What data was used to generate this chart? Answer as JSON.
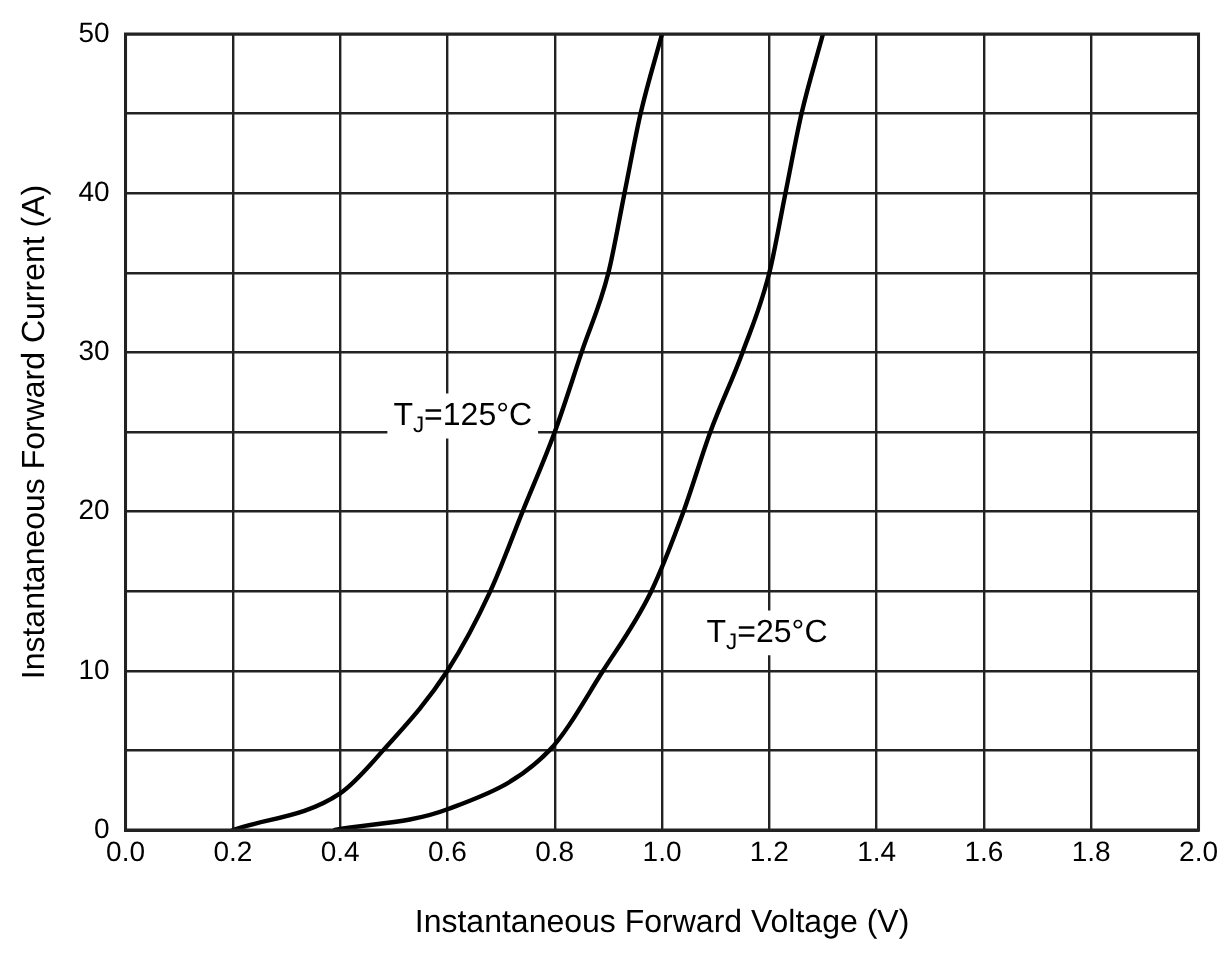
{
  "chart_data": {
    "type": "line",
    "xlabel": "Instantaneous Forward Voltage (V)",
    "ylabel": "Instantaneous Forward Current (A)",
    "xlim": [
      0,
      2.0
    ],
    "xticks": [
      {
        "value": 0,
        "label": "0.0"
      },
      0.2,
      0.4,
      0.6,
      0.8,
      {
        "value": 1,
        "label": "1.0"
      },
      1.2,
      1.4,
      1.6,
      1.8,
      {
        "value": 2,
        "label": "2.0"
      }
    ],
    "ylim": [
      0,
      50
    ],
    "yticks": [
      0,
      {
        "value": 5,
        "label": null
      },
      10,
      {
        "value": 15,
        "label": null
      },
      20,
      {
        "value": 25,
        "label": null
      },
      30,
      {
        "value": 35,
        "label": null
      },
      40,
      {
        "value": 45,
        "label": null
      },
      50
    ],
    "grid": true,
    "legend": false,
    "marker": "none",
    "line_style": "solid",
    "series": [
      {
        "name": "T$_{J}$=125°C",
        "color": "#000000",
        "x": [
          0.2,
          0.4,
          0.48,
          0.6,
          0.68,
          0.74,
          0.8,
          0.85,
          0.9,
          0.93,
          0.96,
          1.0
        ],
        "values": [
          0,
          2.3,
          5,
          10,
          15,
          20,
          25,
          30,
          35,
          40,
          45,
          50
        ]
      },
      {
        "name": "T$_{J}$=25°C",
        "color": "#000000",
        "x": [
          0.39,
          0.6,
          0.79,
          0.89,
          0.98,
          1.04,
          1.09,
          1.15,
          1.2,
          1.23,
          1.26,
          1.3
        ],
        "values": [
          0,
          1.3,
          5,
          10,
          15,
          20,
          25,
          30,
          35,
          40,
          45,
          50
        ]
      }
    ]
  }
}
